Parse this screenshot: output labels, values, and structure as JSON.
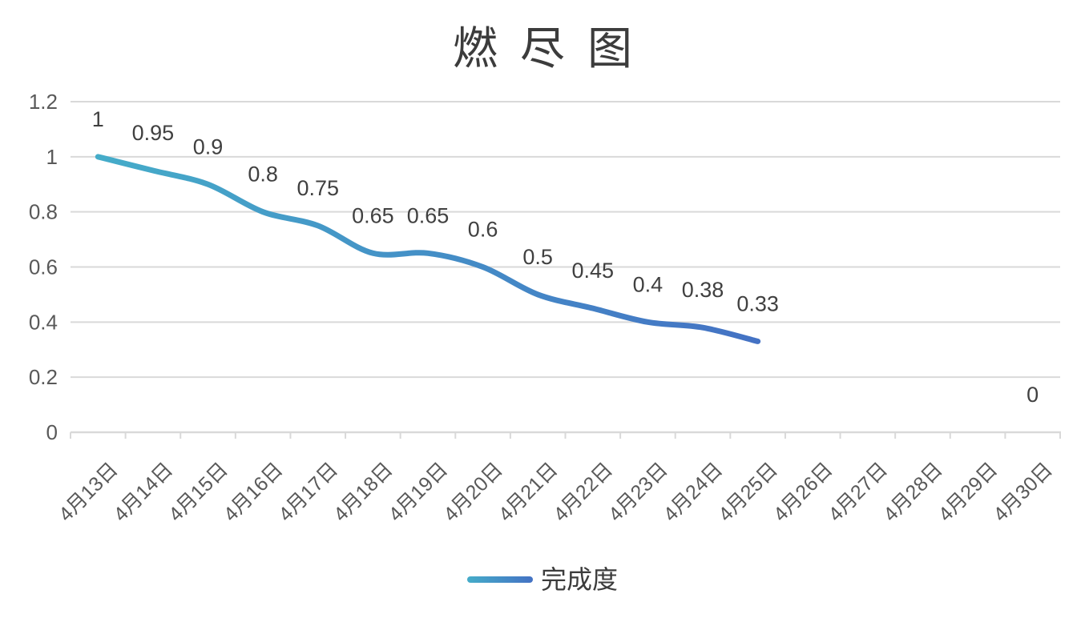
{
  "chart_data": {
    "type": "line",
    "title": "燃尽图",
    "categories": [
      "4月13日",
      "4月14日",
      "4月15日",
      "4月16日",
      "4月17日",
      "4月18日",
      "4月19日",
      "4月20日",
      "4月21日",
      "4月22日",
      "4月23日",
      "4月24日",
      "4月25日",
      "4月26日",
      "4月27日",
      "4月28日",
      "4月29日",
      "4月30日"
    ],
    "series": [
      {
        "name": "完成度",
        "values": [
          1,
          0.95,
          0.9,
          0.8,
          0.75,
          0.65,
          0.65,
          0.6,
          0.5,
          0.45,
          0.4,
          0.38,
          0.33,
          null,
          null,
          null,
          null,
          0
        ],
        "gradient": [
          "#45ACC9",
          "#4472C4"
        ]
      }
    ],
    "data_labels": [
      "1",
      "0.95",
      "0.9",
      "0.8",
      "0.75",
      "0.65",
      "0.65",
      "0.6",
      "0.5",
      "0.45",
      "0.4",
      "0.38",
      "0.33",
      null,
      null,
      null,
      null,
      "0"
    ],
    "y_axis": {
      "min": 0,
      "max": 1.2,
      "tick_step": 0.2,
      "ticks": [
        "0",
        "0.2",
        "0.4",
        "0.6",
        "0.8",
        "1",
        "1.2"
      ]
    },
    "smooth": true,
    "grid": "horizontal",
    "legend_position": "bottom",
    "colors": {
      "gridline": "#D9D9D9",
      "axis": "#D9D9D9",
      "axis_label": "#595959",
      "data_label": "#404040",
      "title": "#3C3C3C",
      "background": "#FFFFFF"
    }
  }
}
